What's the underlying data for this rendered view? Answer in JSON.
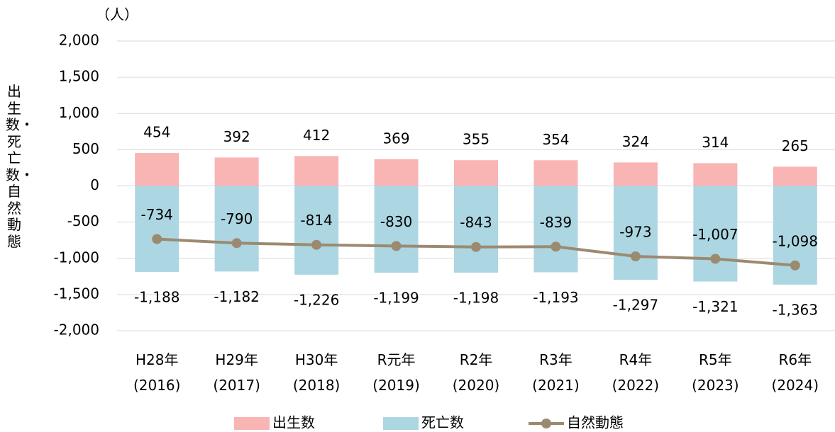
{
  "chart_data": {
    "type": "bar_line",
    "unit_label": "（人）",
    "y_axis_label": "出生数・死亡数・自然動態",
    "categories": [
      "H28年\n(2016)",
      "H29年\n(2017)",
      "H30年\n(2018)",
      "R元年\n(2019)",
      "R2年\n(2020)",
      "R3年\n(2021)",
      "R4年\n(2022)",
      "R5年\n(2023)",
      "R6年\n(2024)"
    ],
    "series": [
      {
        "name": "出生数",
        "type": "bar",
        "color": "#f9b4b4",
        "values": [
          454,
          392,
          412,
          369,
          355,
          354,
          324,
          314,
          265
        ]
      },
      {
        "name": "死亡数",
        "type": "bar",
        "color": "#acd6e2",
        "values": [
          -1188,
          -1182,
          -1226,
          -1199,
          -1198,
          -1193,
          -1297,
          -1321,
          -1363
        ],
        "value_labels": [
          "-1,188",
          "-1,182",
          "-1,226",
          "-1,199",
          "-1,198",
          "-1,193",
          "-1,297",
          "-1,321",
          "-1,363"
        ]
      },
      {
        "name": "自然動態",
        "type": "line",
        "color": "#9c8a70",
        "values": [
          -734,
          -790,
          -814,
          -830,
          -843,
          -839,
          -973,
          -1007,
          -1098
        ],
        "value_labels": [
          "-734",
          "-790",
          "-814",
          "-830",
          "-843",
          "-839",
          "-973",
          "-1,007",
          "-1,098"
        ]
      }
    ],
    "ylim": [
      -2000,
      2000
    ],
    "yticks": [
      {
        "value": 2000,
        "label": "2,000"
      },
      {
        "value": 1500,
        "label": "1,500"
      },
      {
        "value": 1000,
        "label": "1,000"
      },
      500,
      0,
      -500,
      {
        "value": -1000,
        "label": "-1,000"
      },
      {
        "value": -1500,
        "label": "-1,500"
      },
      {
        "value": -2000,
        "label": "-2,000"
      }
    ],
    "grid": true,
    "negative_color": "#ff0000",
    "legend": "bottom"
  }
}
